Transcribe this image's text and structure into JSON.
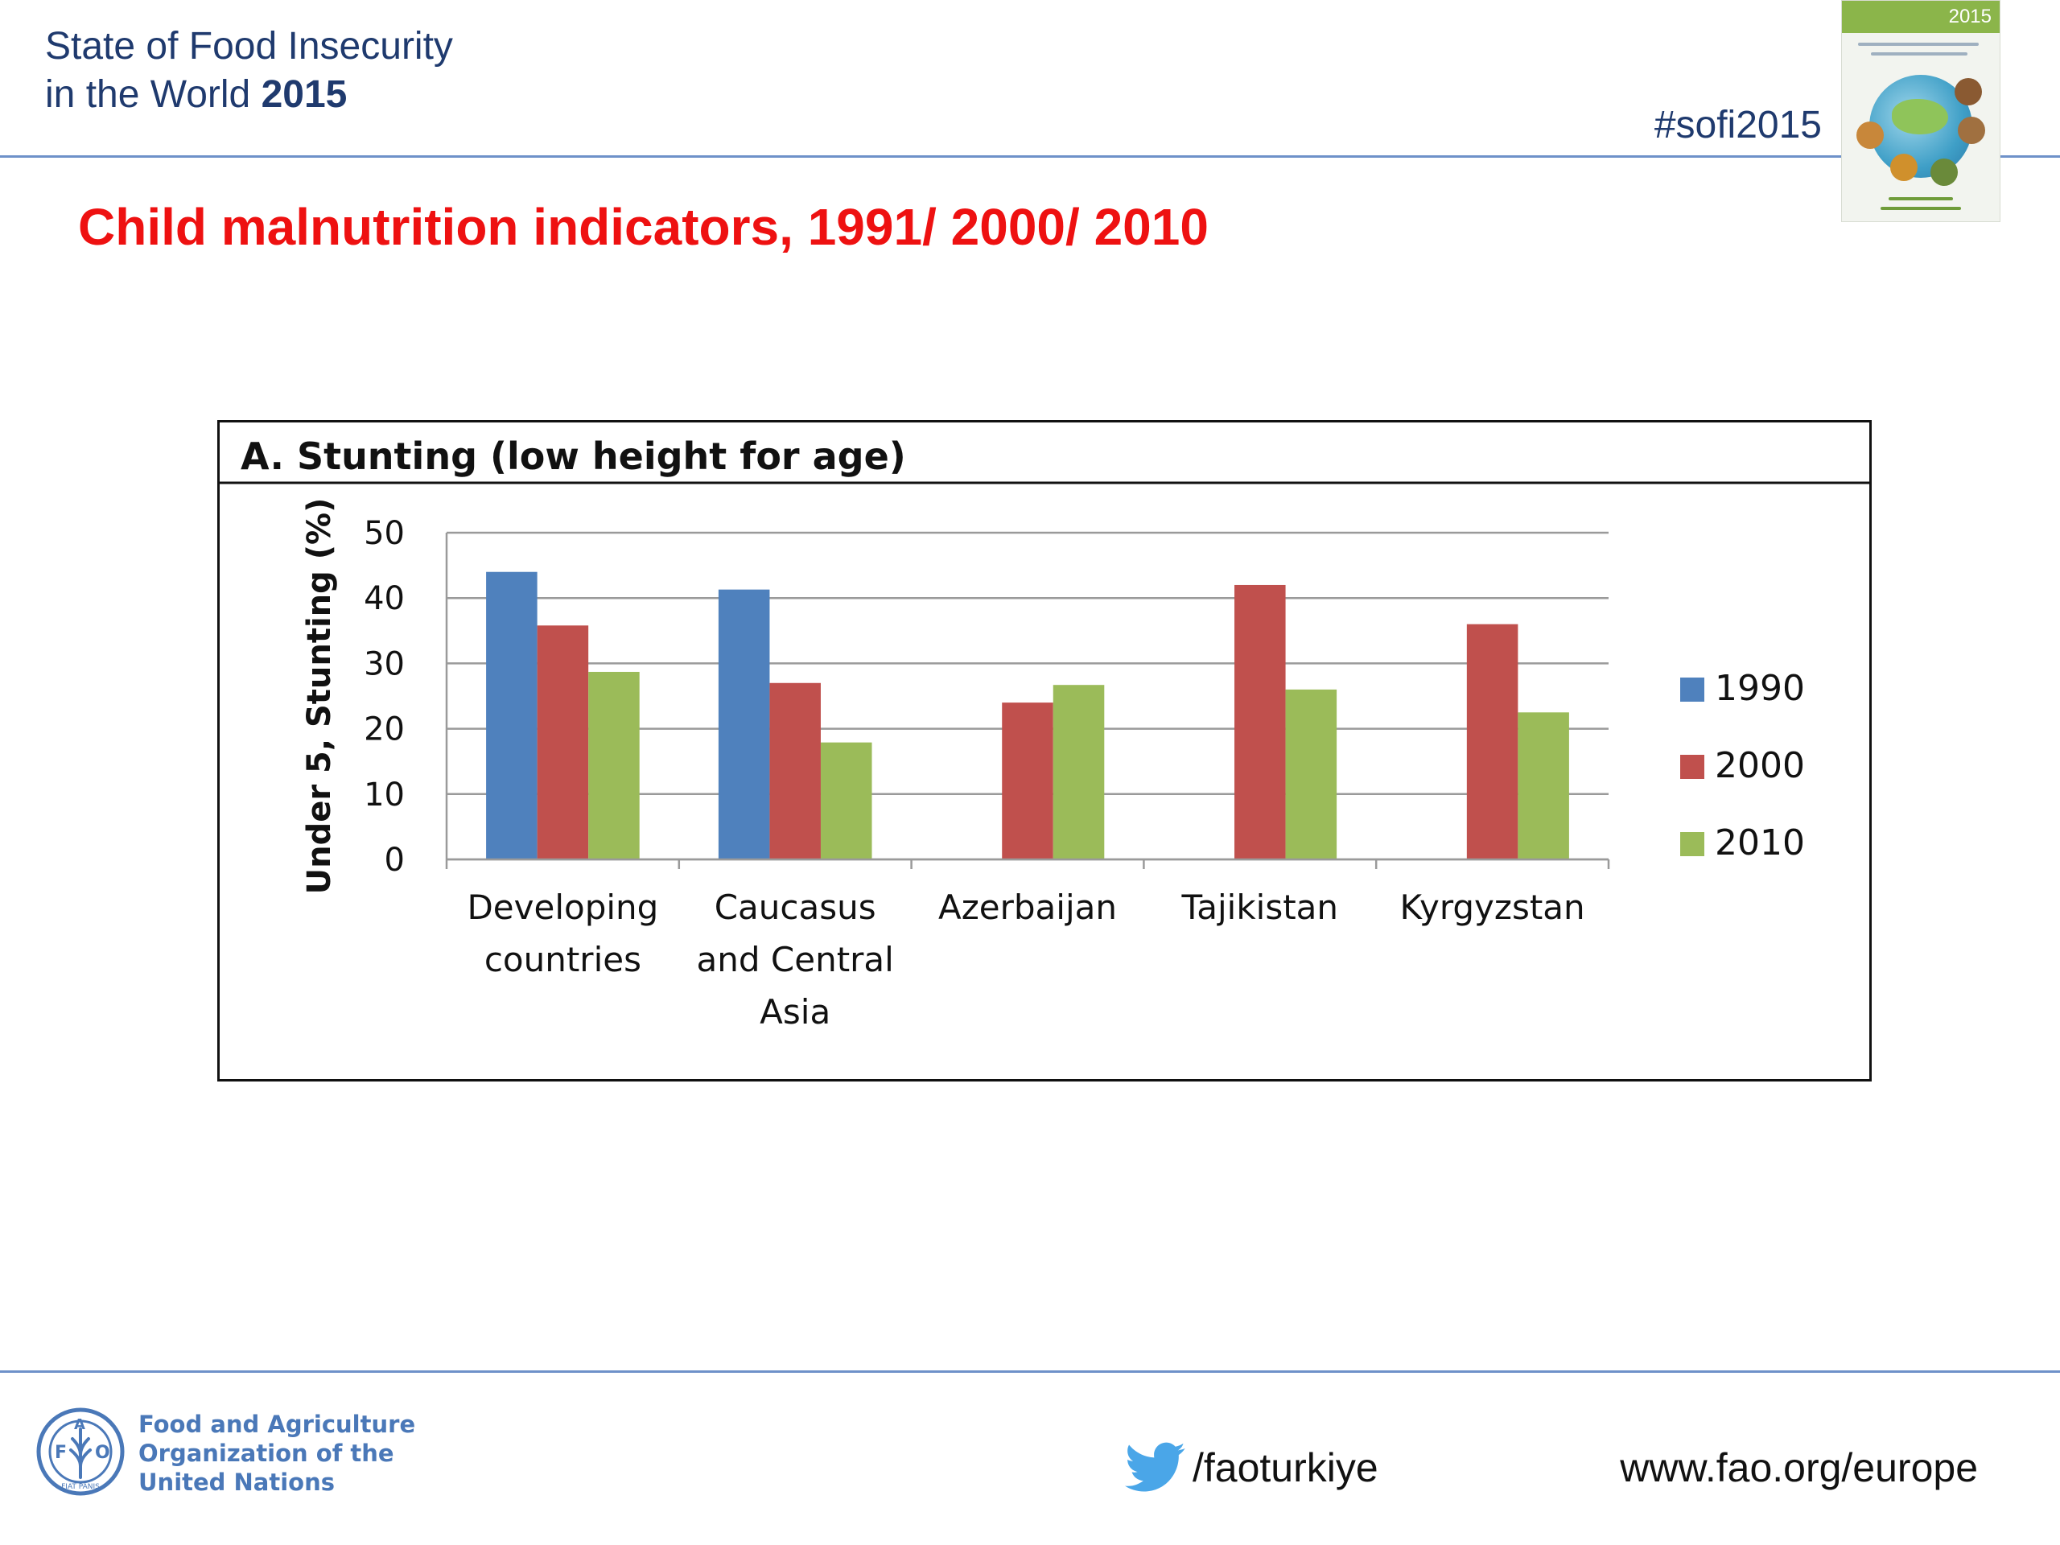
{
  "header": {
    "title_line1": "State of Food Insecurity",
    "title_line2_prefix": "in the World ",
    "title_line2_year": "2015",
    "hashtag": "#sofi2015",
    "cover_year": "2015"
  },
  "slide_title": "Child malnutrition indicators, 1991/ 2000/ 2010",
  "chart_data": {
    "type": "bar",
    "title": "A. Stunting (low height for age)",
    "ylabel": "Under 5, Stunting (%)",
    "xlabel": "",
    "ylim": [
      0,
      50
    ],
    "yticks": [
      0,
      10,
      20,
      30,
      40,
      50
    ],
    "grid": true,
    "legend_position": "right",
    "categories": [
      [
        "Developing",
        "countries"
      ],
      [
        "Caucasus",
        "and Central",
        "Asia"
      ],
      [
        "Azerbaijan"
      ],
      [
        "Tajikistan"
      ],
      [
        "Kyrgyzstan"
      ]
    ],
    "series": [
      {
        "name": "1990",
        "color": "#4f81bd",
        "values": [
          44,
          41.3,
          null,
          null,
          null
        ]
      },
      {
        "name": "2000",
        "color": "#c0504d",
        "values": [
          35.8,
          27,
          24,
          42,
          36
        ]
      },
      {
        "name": "2010",
        "color": "#9bbb59",
        "values": [
          28.7,
          17.9,
          26.7,
          26,
          22.5
        ]
      }
    ]
  },
  "footer": {
    "org_line1": "Food and Agriculture",
    "org_line2": "Organization of the",
    "org_line3": "United Nations",
    "logo_letters": [
      "F",
      "A",
      "O"
    ],
    "logo_motto": "FIAT PANIS",
    "twitter_handle": "/faoturkiye",
    "website": "www.fao.org/europe"
  }
}
